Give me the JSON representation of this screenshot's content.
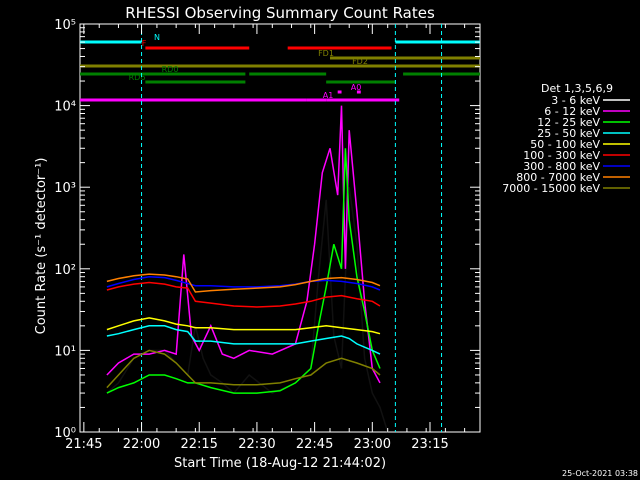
{
  "chart_data": {
    "type": "line",
    "title": "RHESSI Observing Summary Count Rates",
    "xlabel": "Start Time (18-Aug-12 21:44:02)",
    "ylabel": "Count Rate (s⁻¹ detector⁻¹)",
    "x_ticks": [
      "21:45",
      "22:00",
      "22:15",
      "22:30",
      "22:45",
      "23:00",
      "23:15"
    ],
    "x_tick_minutes": [
      1,
      16,
      31,
      46,
      61,
      76,
      91
    ],
    "x_range_minutes": [
      0,
      104
    ],
    "y_scale": "log",
    "y_range": [
      1,
      100000
    ],
    "y_ticks": [
      "10⁰",
      "10¹",
      "10²",
      "10³",
      "10⁴",
      "10⁵"
    ],
    "legend_title": "Det 1,3,5,6,9",
    "legend_position": "right",
    "timestamp": "25-Oct-2021 03:38",
    "series": [
      {
        "name": "3 - 6 keV",
        "color": "#000000",
        "points": [
          [
            7,
            3
          ],
          [
            10,
            4
          ],
          [
            14,
            8
          ],
          [
            18,
            10
          ],
          [
            22,
            10
          ],
          [
            25,
            7
          ],
          [
            28,
            5
          ],
          [
            30,
            20
          ],
          [
            32,
            8
          ],
          [
            34,
            5
          ],
          [
            37,
            4
          ],
          [
            40,
            3
          ],
          [
            44,
            5
          ],
          [
            50,
            3
          ],
          [
            56,
            4
          ],
          [
            60,
            6
          ],
          [
            62,
            80
          ],
          [
            64,
            700
          ],
          [
            66,
            15
          ],
          [
            68,
            6
          ],
          [
            70,
            1000
          ],
          [
            72,
            200
          ],
          [
            74,
            8
          ],
          [
            76,
            3
          ],
          [
            78,
            2
          ],
          [
            80,
            1
          ]
        ]
      },
      {
        "name": "6 - 12 keV",
        "color": "#ff00ff",
        "points": [
          [
            7,
            5
          ],
          [
            10,
            7
          ],
          [
            14,
            9
          ],
          [
            18,
            9
          ],
          [
            22,
            10
          ],
          [
            25,
            9
          ],
          [
            27,
            150
          ],
          [
            29,
            15
          ],
          [
            31,
            10
          ],
          [
            34,
            20
          ],
          [
            37,
            9
          ],
          [
            40,
            8
          ],
          [
            44,
            10
          ],
          [
            50,
            9
          ],
          [
            56,
            12
          ],
          [
            59,
            40
          ],
          [
            61,
            200
          ],
          [
            63,
            1500
          ],
          [
            65,
            3000
          ],
          [
            67,
            800
          ],
          [
            68,
            10000
          ],
          [
            69,
            100
          ],
          [
            70,
            5000
          ],
          [
            72,
            500
          ],
          [
            74,
            40
          ],
          [
            76,
            6
          ],
          [
            78,
            4
          ]
        ]
      },
      {
        "name": "12 - 25 keV",
        "color": "#00ff00",
        "points": [
          [
            7,
            3
          ],
          [
            10,
            3.5
          ],
          [
            14,
            4
          ],
          [
            18,
            5
          ],
          [
            22,
            5
          ],
          [
            25,
            4.5
          ],
          [
            28,
            4
          ],
          [
            30,
            4
          ],
          [
            34,
            3.5
          ],
          [
            40,
            3
          ],
          [
            46,
            3
          ],
          [
            52,
            3.2
          ],
          [
            56,
            4
          ],
          [
            60,
            6
          ],
          [
            62,
            20
          ],
          [
            64,
            60
          ],
          [
            66,
            200
          ],
          [
            68,
            100
          ],
          [
            69,
            3000
          ],
          [
            70,
            400
          ],
          [
            72,
            80
          ],
          [
            74,
            30
          ],
          [
            76,
            10
          ],
          [
            78,
            6
          ]
        ]
      },
      {
        "name": "25 - 50 keV",
        "color": "#00ffff",
        "points": [
          [
            7,
            15
          ],
          [
            10,
            16
          ],
          [
            14,
            18
          ],
          [
            18,
            20
          ],
          [
            22,
            20
          ],
          [
            25,
            18
          ],
          [
            28,
            17
          ],
          [
            30,
            13
          ],
          [
            34,
            13
          ],
          [
            40,
            12
          ],
          [
            46,
            12
          ],
          [
            52,
            12
          ],
          [
            56,
            12
          ],
          [
            60,
            13
          ],
          [
            64,
            14
          ],
          [
            68,
            15
          ],
          [
            70,
            14
          ],
          [
            72,
            12
          ],
          [
            76,
            10
          ],
          [
            78,
            9
          ]
        ]
      },
      {
        "name": "50 - 100 keV",
        "color": "#ffff00",
        "points": [
          [
            7,
            18
          ],
          [
            10,
            20
          ],
          [
            14,
            23
          ],
          [
            18,
            25
          ],
          [
            22,
            23
          ],
          [
            25,
            21
          ],
          [
            28,
            20
          ],
          [
            30,
            19
          ],
          [
            34,
            19
          ],
          [
            40,
            18
          ],
          [
            46,
            18
          ],
          [
            52,
            18
          ],
          [
            56,
            18
          ],
          [
            60,
            19
          ],
          [
            64,
            20
          ],
          [
            68,
            19
          ],
          [
            72,
            18
          ],
          [
            76,
            17
          ],
          [
            78,
            16
          ]
        ]
      },
      {
        "name": "100 - 300 keV",
        "color": "#ff0000",
        "points": [
          [
            7,
            55
          ],
          [
            10,
            60
          ],
          [
            14,
            65
          ],
          [
            18,
            68
          ],
          [
            22,
            65
          ],
          [
            25,
            60
          ],
          [
            28,
            58
          ],
          [
            30,
            40
          ],
          [
            34,
            38
          ],
          [
            40,
            35
          ],
          [
            46,
            34
          ],
          [
            52,
            35
          ],
          [
            56,
            37
          ],
          [
            60,
            40
          ],
          [
            64,
            45
          ],
          [
            68,
            47
          ],
          [
            72,
            43
          ],
          [
            76,
            40
          ],
          [
            78,
            35
          ]
        ]
      },
      {
        "name": "300 - 800 keV",
        "color": "#0000ff",
        "points": [
          [
            7,
            60
          ],
          [
            10,
            66
          ],
          [
            14,
            74
          ],
          [
            18,
            80
          ],
          [
            22,
            78
          ],
          [
            25,
            72
          ],
          [
            28,
            66
          ],
          [
            30,
            62
          ],
          [
            34,
            62
          ],
          [
            40,
            60
          ],
          [
            46,
            60
          ],
          [
            52,
            62
          ],
          [
            56,
            65
          ],
          [
            60,
            70
          ],
          [
            64,
            72
          ],
          [
            68,
            70
          ],
          [
            72,
            66
          ],
          [
            76,
            60
          ],
          [
            78,
            55
          ]
        ]
      },
      {
        "name": "800 - 7000 keV",
        "color": "#ff8000",
        "points": [
          [
            7,
            70
          ],
          [
            10,
            76
          ],
          [
            14,
            82
          ],
          [
            18,
            86
          ],
          [
            22,
            84
          ],
          [
            25,
            80
          ],
          [
            28,
            75
          ],
          [
            30,
            52
          ],
          [
            34,
            54
          ],
          [
            40,
            56
          ],
          [
            46,
            58
          ],
          [
            52,
            60
          ],
          [
            56,
            64
          ],
          [
            60,
            70
          ],
          [
            64,
            76
          ],
          [
            68,
            78
          ],
          [
            72,
            74
          ],
          [
            76,
            68
          ],
          [
            78,
            62
          ]
        ]
      },
      {
        "name": "7000 - 15000 keV",
        "color": "#808000",
        "points": [
          [
            7,
            3.5
          ],
          [
            10,
            5
          ],
          [
            14,
            8
          ],
          [
            18,
            10
          ],
          [
            22,
            9
          ],
          [
            25,
            7
          ],
          [
            28,
            5
          ],
          [
            30,
            4
          ],
          [
            34,
            4
          ],
          [
            40,
            3.8
          ],
          [
            46,
            3.8
          ],
          [
            52,
            4
          ],
          [
            56,
            4.5
          ],
          [
            60,
            5
          ],
          [
            64,
            7
          ],
          [
            68,
            8
          ],
          [
            72,
            7
          ],
          [
            76,
            6
          ],
          [
            78,
            5
          ]
        ]
      }
    ],
    "bars": [
      {
        "label": "N",
        "color": "#00ffff",
        "segments": [
          [
            0,
            16
          ],
          [
            82,
            104
          ]
        ]
      },
      {
        "label": "F",
        "color": "#ff0000",
        "segments": [
          [
            17,
            44
          ],
          [
            54,
            81
          ]
        ]
      },
      {
        "label": "FD1",
        "color": "#808000",
        "segments": [
          [
            0,
            104
          ]
        ]
      },
      {
        "label": "FD2",
        "color": "#808000",
        "segments": [
          [
            65,
            104
          ]
        ]
      },
      {
        "label": "RD0",
        "color": "#008000",
        "segments": [
          [
            0,
            43
          ],
          [
            44,
            64
          ],
          [
            84,
            104
          ]
        ]
      },
      {
        "label": "RD6",
        "color": "#008000",
        "segments": [
          [
            17,
            43
          ],
          [
            64,
            82
          ]
        ]
      },
      {
        "label": "A0",
        "color": "#ff00ff",
        "segments": [
          [
            67,
            68
          ],
          [
            72,
            73
          ]
        ]
      },
      {
        "label": "A1",
        "color": "#ff00ff",
        "segments": [
          [
            0,
            59
          ],
          [
            59,
            64
          ],
          [
            64,
            83
          ]
        ]
      }
    ],
    "vlines_cyan": [
      16,
      82,
      94
    ]
  }
}
